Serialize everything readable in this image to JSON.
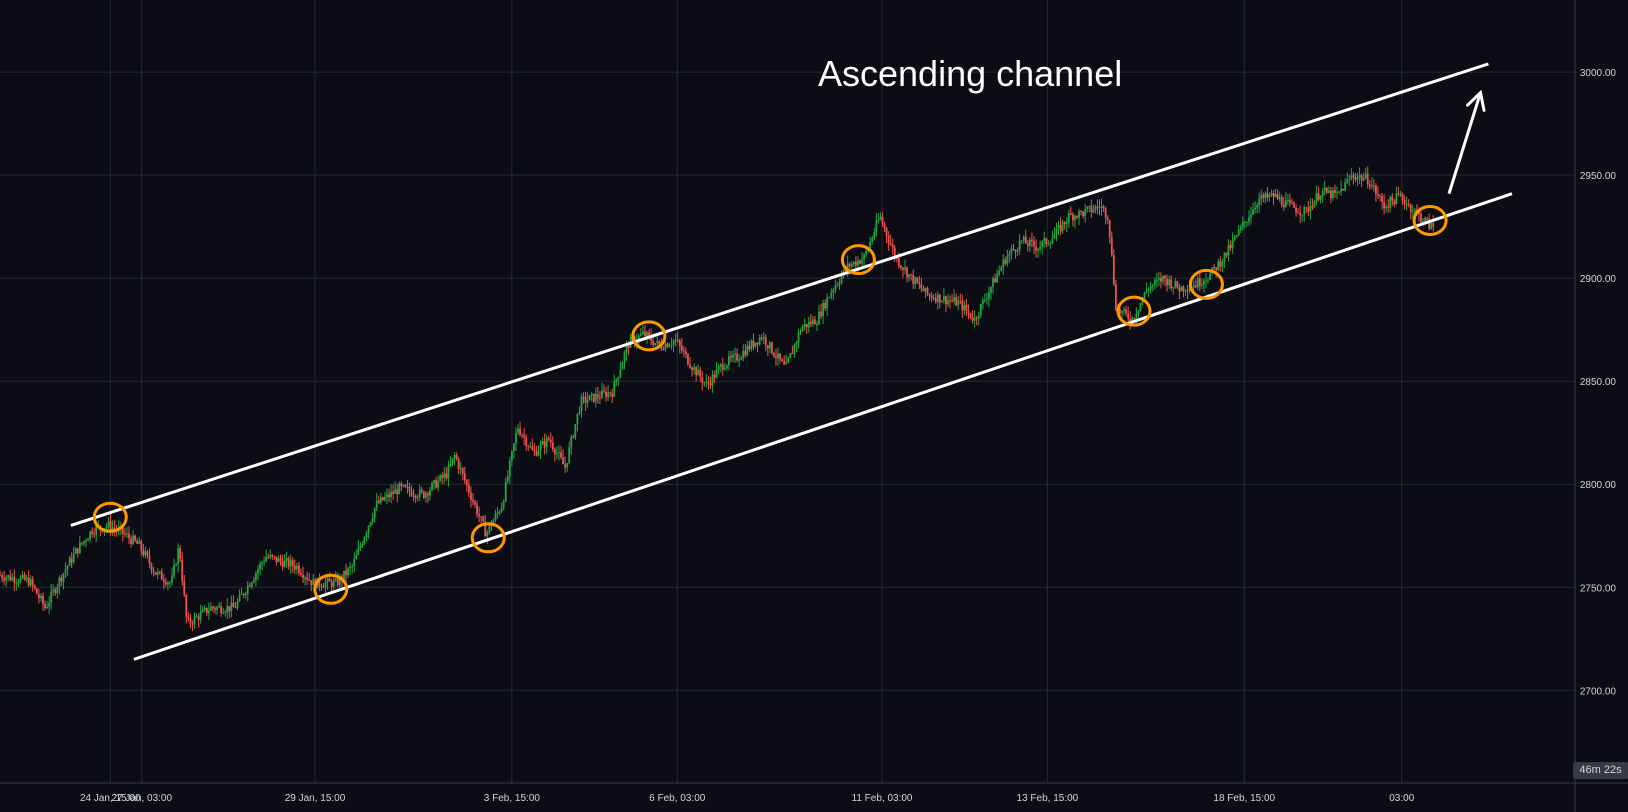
{
  "colors": {
    "background": "#0b0c14",
    "grid": "#262a38",
    "axis_text": "#d1d4dc",
    "bull": "#26a641",
    "bear": "#ef5350",
    "channel_line": "#ffffff",
    "touch_marker": "#ff9800",
    "countdown_bg": "#363a45"
  },
  "chart_data": {
    "type": "candlestick",
    "title": "Ascending channel",
    "y_axis": {
      "position": "right",
      "range": [
        2655,
        3035
      ],
      "ticks": [
        2700,
        2750,
        2800,
        2850,
        2900,
        2950,
        3000
      ],
      "tick_labels": [
        "2700.00",
        "2750.00",
        "2800.00",
        "2850.00",
        "2900.00",
        "2950.00",
        "3000.00"
      ]
    },
    "x_axis": {
      "range": [
        0,
        100
      ],
      "ticks": [
        7,
        9,
        20,
        32.5,
        43,
        56,
        66.5,
        79,
        89
      ],
      "tick_labels": [
        "24 Jan, 15:00",
        "27 Jan, 03:00",
        "29 Jan, 15:00",
        "3 Feb, 15:00",
        "6 Feb, 03:00",
        "11 Feb, 03:00",
        "13 Feb, 15:00",
        "18 Feb, 15:00",
        "03:00"
      ]
    },
    "grid": true,
    "countdown_label": "46m 22s",
    "price_path": [
      [
        0,
        2756
      ],
      [
        2,
        2753
      ],
      [
        3,
        2740
      ],
      [
        4,
        2755
      ],
      [
        5,
        2768
      ],
      [
        6,
        2778
      ],
      [
        7,
        2780
      ],
      [
        8,
        2776
      ],
      [
        9,
        2770
      ],
      [
        10,
        2757
      ],
      [
        11,
        2752
      ],
      [
        11.5,
        2770
      ],
      [
        12,
        2732
      ],
      [
        13.5,
        2740
      ],
      [
        15,
        2740
      ],
      [
        17,
        2765
      ],
      [
        19,
        2760
      ],
      [
        20,
        2752
      ],
      [
        21.5,
        2752
      ],
      [
        22.5,
        2760
      ],
      [
        24,
        2790
      ],
      [
        25.5,
        2798
      ],
      [
        27,
        2795
      ],
      [
        28.5,
        2805
      ],
      [
        29,
        2814
      ],
      [
        30,
        2795
      ],
      [
        31,
        2776
      ],
      [
        32,
        2790
      ],
      [
        33,
        2828
      ],
      [
        34,
        2815
      ],
      [
        35,
        2822
      ],
      [
        36,
        2808
      ],
      [
        37,
        2840
      ],
      [
        39,
        2845
      ],
      [
        40,
        2868
      ],
      [
        41,
        2873
      ],
      [
        42,
        2867
      ],
      [
        43,
        2870
      ],
      [
        44,
        2858
      ],
      [
        45,
        2848
      ],
      [
        46,
        2858
      ],
      [
        47,
        2862
      ],
      [
        48.5,
        2872
      ],
      [
        50,
        2856
      ],
      [
        51,
        2876
      ],
      [
        52,
        2880
      ],
      [
        53,
        2895
      ],
      [
        54,
        2906
      ],
      [
        55,
        2910
      ],
      [
        56,
        2930
      ],
      [
        56.5,
        2920
      ],
      [
        57,
        2910
      ],
      [
        58,
        2900
      ],
      [
        59,
        2892
      ],
      [
        60,
        2890
      ],
      [
        61,
        2888
      ],
      [
        62,
        2880
      ],
      [
        63,
        2895
      ],
      [
        64,
        2910
      ],
      [
        65,
        2918
      ],
      [
        66,
        2915
      ],
      [
        67,
        2920
      ],
      [
        68,
        2930
      ],
      [
        69,
        2932
      ],
      [
        70,
        2935
      ],
      [
        70.5,
        2930
      ],
      [
        71,
        2885
      ],
      [
        72,
        2880
      ],
      [
        73,
        2895
      ],
      [
        74,
        2900
      ],
      [
        75,
        2895
      ],
      [
        76,
        2897
      ],
      [
        77,
        2902
      ],
      [
        78,
        2912
      ],
      [
        79,
        2925
      ],
      [
        80,
        2938
      ],
      [
        81,
        2940
      ],
      [
        82,
        2935
      ],
      [
        83,
        2932
      ],
      [
        84,
        2942
      ],
      [
        85,
        2940
      ],
      [
        86,
        2950
      ],
      [
        87,
        2948
      ],
      [
        88,
        2935
      ],
      [
        89,
        2940
      ],
      [
        90,
        2932
      ],
      [
        91,
        2925
      ]
    ],
    "channel": {
      "upper": [
        [
          4.5,
          2780
        ],
        [
          94.5,
          3004
        ]
      ],
      "lower": [
        [
          8.5,
          2715
        ],
        [
          96,
          2941
        ]
      ]
    },
    "touch_points": [
      [
        7,
        2784
      ],
      [
        21,
        2749
      ],
      [
        31,
        2774
      ],
      [
        41.2,
        2872
      ],
      [
        54.5,
        2909
      ],
      [
        72,
        2884
      ],
      [
        76.6,
        2897
      ],
      [
        90.8,
        2928
      ]
    ],
    "arrow": {
      "from": [
        92,
        2941
      ],
      "to": [
        94,
        2990
      ]
    }
  }
}
